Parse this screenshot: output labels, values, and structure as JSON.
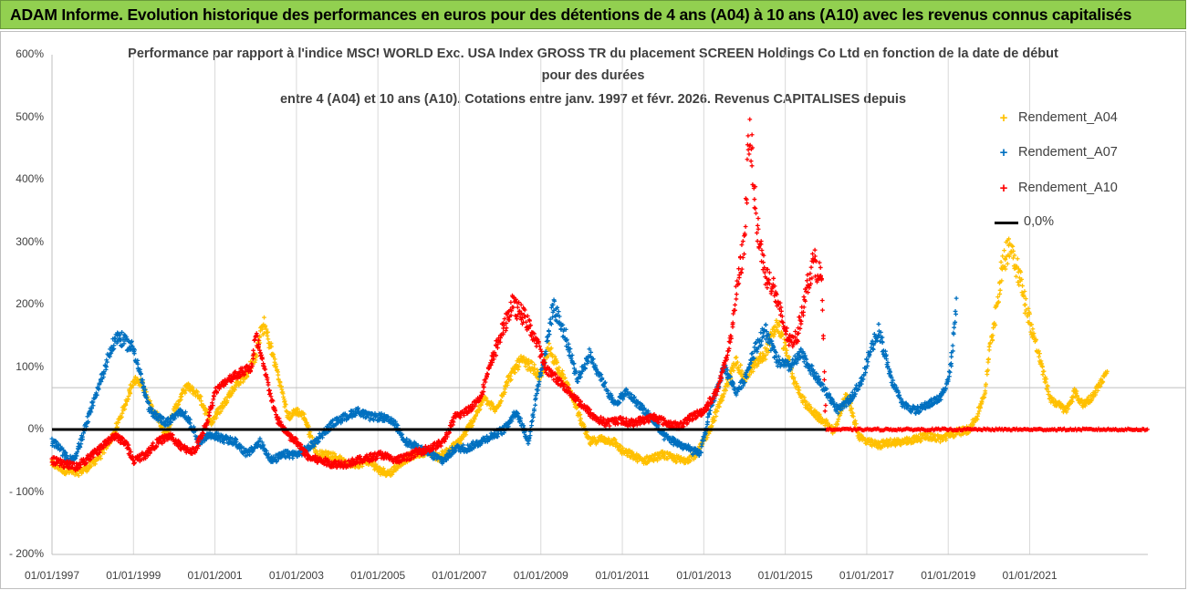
{
  "banner": {
    "text": "ADAM Informe. Evolution historique des performances en euros pour des détentions de 4 ans (A04) à 10 ans (A10) avec les revenus connus capitalisés"
  },
  "chart_data": {
    "type": "scatter",
    "title_lines": [
      "Performance par rapport à l'indice MSCI WORLD Exc. USA Index GROSS TR  du placement SCREEN Holdings Co Ltd en fonction de la date de début",
      "pour des durées",
      "entre 4 (A04) et 10 ans (A10). Cotations entre janv. 1997 et févr. 2026. Revenus CAPITALISES depuis"
    ],
    "ylabel": "",
    "xlabel": "",
    "ylim": [
      -200,
      600
    ],
    "xlim": [
      1997.0,
      2023.9
    ],
    "y_ticks": [
      600,
      500,
      400,
      300,
      200,
      100,
      0,
      -100,
      -200
    ],
    "y_tick_labels": [
      "600%",
      "500%",
      "400%",
      "300%",
      "200%",
      "100%",
      "0%",
      "- 100%",
      "- 200%"
    ],
    "x_ticks": [
      1997,
      1999,
      2001,
      2003,
      2005,
      2007,
      2009,
      2011,
      2013,
      2015,
      2017,
      2019,
      2021
    ],
    "x_tick_labels": [
      "01/01/1997",
      "01/01/1999",
      "01/01/2001",
      "01/01/2003",
      "01/01/2005",
      "01/01/2007",
      "01/01/2009",
      "01/01/2011",
      "01/01/2013",
      "01/01/2015",
      "01/01/2017",
      "01/01/2019",
      "01/01/2021"
    ],
    "reference_line_y": 67,
    "series": [
      {
        "name": "Rendement_A04",
        "color": "#ffc000",
        "x": [
          1997.0,
          1997.3,
          1997.6,
          1997.9,
          1998.2,
          1998.5,
          1998.8,
          1999.0,
          1999.2,
          1999.4,
          1999.6,
          1999.8,
          2000.0,
          2000.3,
          2000.6,
          2000.9,
          2001.2,
          2001.5,
          2001.8,
          2002.0,
          2002.2,
          2002.5,
          2002.8,
          2003.0,
          2003.2,
          2003.5,
          2003.8,
          2004.0,
          2004.2,
          2004.5,
          2004.8,
          2005.0,
          2005.3,
          2005.6,
          2005.9,
          2006.2,
          2006.5,
          2006.8,
          2007.0,
          2007.3,
          2007.6,
          2007.9,
          2008.2,
          2008.5,
          2008.8,
          2009.0,
          2009.2,
          2009.5,
          2009.8,
          2010.0,
          2010.2,
          2010.5,
          2010.8,
          2011.0,
          2011.2,
          2011.5,
          2011.8,
          2012.0,
          2012.2,
          2012.5,
          2012.8,
          2013.0,
          2013.2,
          2013.5,
          2013.8,
          2014.0,
          2014.2,
          2014.5,
          2014.8,
          2015.0,
          2015.2,
          2015.5,
          2015.8,
          2016.0,
          2016.2,
          2016.5,
          2016.8,
          2017.0,
          2017.3,
          2017.6,
          2017.9,
          2018.2,
          2018.5,
          2018.8,
          2019.0,
          2019.2,
          2019.5,
          2019.7,
          2019.9,
          2020.0,
          2020.1,
          2020.3,
          2020.5,
          2020.7,
          2020.9,
          2021.1,
          2021.3,
          2021.5,
          2021.7,
          2021.9,
          2022.1,
          2022.3,
          2022.5,
          2022.7,
          2022.9
        ],
        "values": [
          -55,
          -65,
          -70,
          -60,
          -40,
          -10,
          40,
          80,
          75,
          40,
          20,
          -10,
          30,
          70,
          55,
          10,
          40,
          70,
          90,
          120,
          170,
          100,
          20,
          30,
          20,
          -40,
          -40,
          -45,
          -55,
          -55,
          -50,
          -65,
          -70,
          -50,
          -40,
          -35,
          -45,
          -30,
          -20,
          10,
          50,
          30,
          80,
          110,
          100,
          80,
          130,
          90,
          50,
          10,
          -20,
          -15,
          -20,
          -35,
          -40,
          -50,
          -45,
          -40,
          -45,
          -50,
          -40,
          -20,
          10,
          60,
          110,
          80,
          100,
          120,
          170,
          130,
          80,
          40,
          20,
          10,
          -5,
          60,
          -10,
          -20,
          -25,
          -20,
          -20,
          -15,
          -10,
          -15,
          -10,
          -5,
          0,
          20,
          60,
          120,
          160,
          250,
          300,
          260,
          200,
          150,
          100,
          50,
          40,
          30,
          60,
          40,
          50,
          70,
          90
        ]
      },
      {
        "name": "Rendement_A07",
        "color": "#0070c0",
        "x": [
          1997.0,
          1997.2,
          1997.4,
          1997.6,
          1997.8,
          1998.0,
          1998.2,
          1998.4,
          1998.6,
          1998.8,
          1999.0,
          1999.2,
          1999.4,
          1999.6,
          1999.8,
          2000.0,
          2000.2,
          2000.4,
          2000.6,
          2000.8,
          2001.0,
          2001.2,
          2001.5,
          2001.8,
          2002.1,
          2002.4,
          2002.7,
          2003.0,
          2003.3,
          2003.6,
          2003.9,
          2004.2,
          2004.5,
          2004.8,
          2005.1,
          2005.4,
          2005.7,
          2006.0,
          2006.3,
          2006.6,
          2006.9,
          2007.2,
          2007.5,
          2007.8,
          2008.1,
          2008.4,
          2008.7,
          2008.9,
          2009.1,
          2009.3,
          2009.6,
          2009.9,
          2010.2,
          2010.5,
          2010.8,
          2011.1,
          2011.4,
          2011.7,
          2012.0,
          2012.3,
          2012.6,
          2012.9,
          2013.2,
          2013.5,
          2013.8,
          2014.0,
          2014.2,
          2014.5,
          2014.8,
          2015.1,
          2015.4,
          2015.7,
          2016.0,
          2016.3,
          2016.6,
          2016.9,
          2017.1,
          2017.3,
          2017.6,
          2017.9,
          2018.2,
          2018.5,
          2018.8,
          2019.0,
          2019.1,
          2019.2
        ],
        "values": [
          -20,
          -30,
          -50,
          -40,
          0,
          40,
          80,
          120,
          150,
          140,
          130,
          80,
          30,
          20,
          10,
          20,
          30,
          10,
          -20,
          -10,
          -10,
          -15,
          -20,
          -40,
          -20,
          -50,
          -40,
          -40,
          -30,
          -10,
          10,
          20,
          30,
          20,
          20,
          10,
          -20,
          -30,
          -40,
          -50,
          -30,
          -30,
          -20,
          -10,
          0,
          30,
          -20,
          60,
          120,
          200,
          150,
          80,
          120,
          80,
          40,
          60,
          40,
          20,
          -10,
          -20,
          -30,
          -40,
          40,
          100,
          60,
          80,
          120,
          160,
          110,
          100,
          120,
          90,
          60,
          30,
          50,
          80,
          130,
          160,
          80,
          40,
          30,
          40,
          50,
          80,
          120,
          200
        ]
      },
      {
        "name": "Rendement_A10",
        "color": "#ff0000",
        "x": [
          1997.0,
          1997.3,
          1997.6,
          1997.9,
          1998.2,
          1998.5,
          1998.8,
          1999.0,
          1999.3,
          1999.6,
          1999.9,
          2000.2,
          2000.5,
          2000.8,
          2001.0,
          2001.3,
          2001.6,
          2001.9,
          2002.0,
          2002.2,
          2002.5,
          2002.8,
          2003.0,
          2003.3,
          2003.6,
          2003.9,
          2004.2,
          2004.5,
          2004.8,
          2005.1,
          2005.4,
          2005.7,
          2006.0,
          2006.3,
          2006.6,
          2006.9,
          2007.2,
          2007.5,
          2007.8,
          2008.0,
          2008.3,
          2008.6,
          2008.9,
          2009.1,
          2009.4,
          2009.7,
          2010.0,
          2010.3,
          2010.6,
          2010.9,
          2011.2,
          2011.5,
          2011.8,
          2012.1,
          2012.4,
          2012.7,
          2013.0,
          2013.3,
          2013.6,
          2013.8,
          2014.0,
          2014.1,
          2014.2,
          2014.3,
          2014.5,
          2014.7,
          2014.9,
          2015.1,
          2015.3,
          2015.5,
          2015.7,
          2015.9,
          2016.0
        ],
        "values": [
          -50,
          -55,
          -60,
          -45,
          -30,
          -10,
          -20,
          -50,
          -40,
          -20,
          -10,
          -30,
          -35,
          10,
          60,
          80,
          90,
          100,
          150,
          100,
          20,
          -10,
          -20,
          -45,
          -50,
          -55,
          -55,
          -50,
          -45,
          -40,
          -50,
          -45,
          -35,
          -30,
          -20,
          20,
          30,
          50,
          110,
          150,
          200,
          180,
          140,
          100,
          80,
          60,
          40,
          20,
          10,
          15,
          10,
          15,
          20,
          10,
          5,
          20,
          30,
          60,
          120,
          220,
          300,
          480,
          430,
          330,
          250,
          230,
          180,
          140,
          150,
          220,
          270,
          240,
          0
        ]
      }
    ],
    "legend": [
      "Rendement_A04",
      "Rendement_A07",
      "Rendement_A10",
      "0,0%"
    ],
    "zero_line": {
      "label": "0,0%",
      "value": 0,
      "color": "#000000"
    }
  }
}
